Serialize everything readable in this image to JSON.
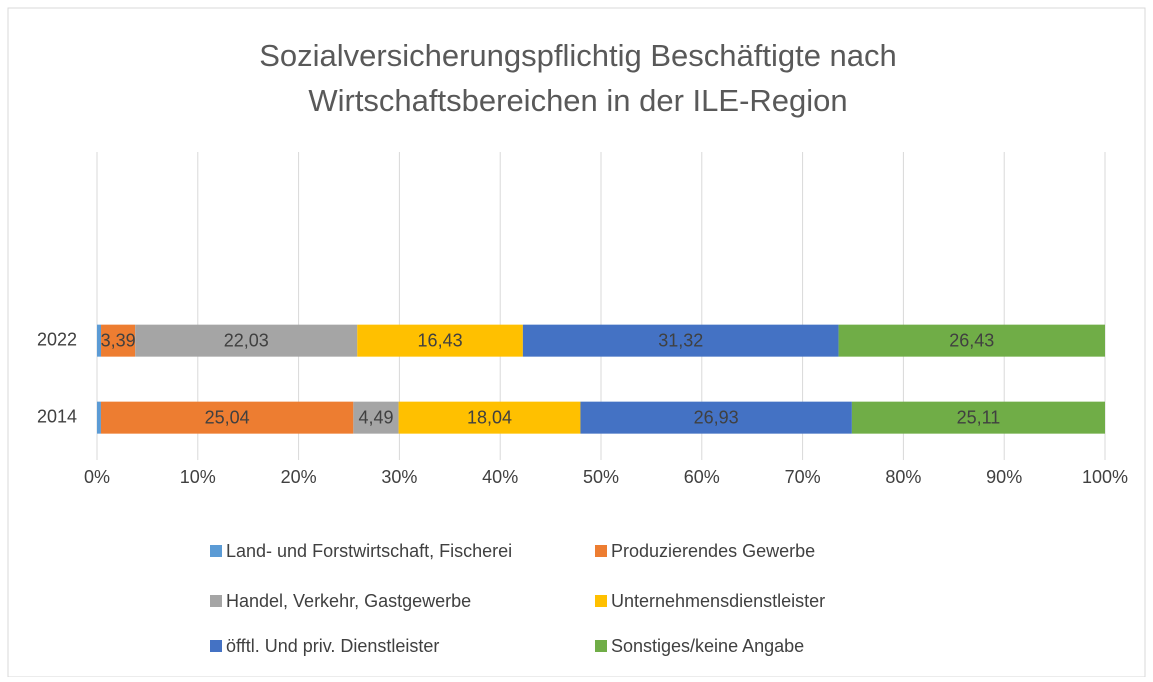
{
  "chart_data": {
    "type": "stacked_barh",
    "title": [
      "Sozialversicherungspflichtig Beschäftigte nach",
      "Wirtschaftsbereichen in der ILE-Region"
    ],
    "categories": [
      "2014",
      "2022"
    ],
    "series": [
      {
        "name": "Land- und Forstwirtschaft, Fischerei",
        "color": "#5b9bd5",
        "values": [
          0.39,
          0.4
        ],
        "value_labels": [
          null,
          null
        ]
      },
      {
        "name": "Produzierendes Gewerbe",
        "color": "#ed7d31",
        "values": [
          25.04,
          3.39
        ],
        "value_labels": [
          "25,04",
          "3,39"
        ]
      },
      {
        "name": "Handel, Verkehr, Gastgewerbe",
        "color": "#a5a5a5",
        "values": [
          4.49,
          22.03
        ],
        "value_labels": [
          "4,49",
          "22,03"
        ]
      },
      {
        "name": "Unternehmensdienstleister",
        "color": "#ffc000",
        "values": [
          18.04,
          16.43
        ],
        "value_labels": [
          "18,04",
          "16,43"
        ]
      },
      {
        "name": "öfftl. Und priv. Dienstleister",
        "color": "#4472c4",
        "values": [
          26.93,
          31.32
        ],
        "value_labels": [
          "26,93",
          "31,32"
        ]
      },
      {
        "name": "Sonstiges/keine Angabe",
        "color": "#70ad47",
        "values": [
          25.11,
          26.43
        ],
        "value_labels": [
          "25,11",
          "26,43"
        ]
      }
    ],
    "xlim": [
      0,
      100
    ],
    "xticks": [
      {
        "value": 0,
        "label": "0%"
      },
      {
        "value": 10,
        "label": "10%"
      },
      {
        "value": 20,
        "label": "20%"
      },
      {
        "value": 30,
        "label": "30%"
      },
      {
        "value": 40,
        "label": "40%"
      },
      {
        "value": 50,
        "label": "50%"
      },
      {
        "value": 60,
        "label": "60%"
      },
      {
        "value": 70,
        "label": "70%"
      },
      {
        "value": 80,
        "label": "80%"
      },
      {
        "value": 90,
        "label": "90%"
      },
      {
        "value": 100,
        "label": "100%"
      }
    ],
    "grid": true,
    "legend": "bottom"
  }
}
